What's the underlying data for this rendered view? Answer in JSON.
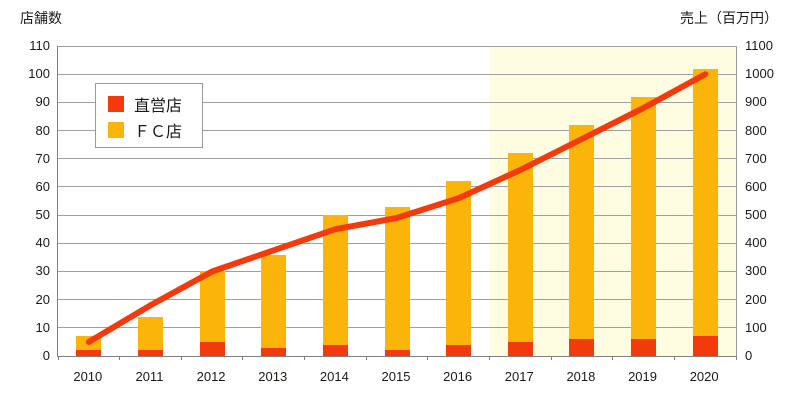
{
  "chart_data": {
    "type": "bar",
    "subtype": "stacked-bar-with-line-combo",
    "categories": [
      "2010",
      "2011",
      "2012",
      "2013",
      "2014",
      "2015",
      "2016",
      "2017",
      "2018",
      "2019",
      "2020"
    ],
    "series": [
      {
        "name": "直営店",
        "type": "bar",
        "axis": "left",
        "color": "#F23A0C",
        "values": [
          2,
          2,
          5,
          3,
          4,
          2,
          4,
          5,
          6,
          6,
          7
        ]
      },
      {
        "name": "ＦＣ店",
        "type": "bar",
        "axis": "left",
        "color": "#FBB40A",
        "values": [
          5,
          12,
          25,
          33,
          46,
          51,
          58,
          67,
          76,
          86,
          95
        ]
      },
      {
        "name": "売上",
        "type": "line",
        "axis": "right",
        "color": "#F23A0C",
        "values": [
          50,
          180,
          300,
          375,
          450,
          490,
          560,
          660,
          770,
          880,
          1000
        ]
      }
    ],
    "stacked_totals": [
      7,
      14,
      30,
      36,
      50,
      53,
      62,
      72,
      82,
      92,
      102
    ],
    "left_axis": {
      "title": "店舗数",
      "min": 0,
      "max": 110,
      "step": 10
    },
    "right_axis": {
      "title": "売上（百万円）",
      "min": 0,
      "max": 1100,
      "step": 100
    },
    "highlight": {
      "from_category": "2017",
      "to_end": true,
      "color": "#FEFCE1"
    },
    "grid": true,
    "gridline_color": "#A0A0A0",
    "legend_position": "upper-left-inside",
    "legend_entries": [
      "直営店",
      "ＦＣ店"
    ]
  }
}
